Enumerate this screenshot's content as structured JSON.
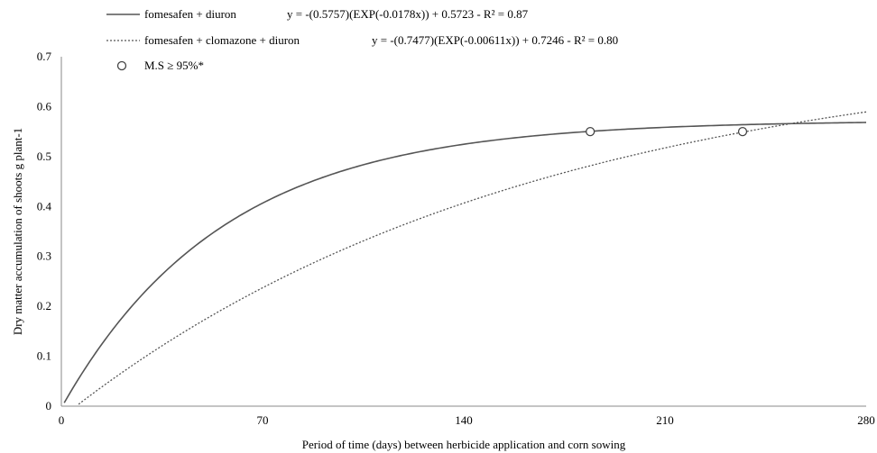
{
  "chart_data": {
    "type": "line",
    "xlabel": "Period of time (days) between herbicide application and corn sowing",
    "ylabel": "Dry matter accumulation of shoots g plant-1",
    "xlim": [
      0,
      280
    ],
    "ylim": [
      0,
      0.7
    ],
    "xticks": [
      "0",
      "70",
      "140",
      "210",
      "280"
    ],
    "yticks": [
      "0",
      "0.1",
      "0.2",
      "0.3",
      "0.4",
      "0.5",
      "0.6",
      "0.7"
    ],
    "grid": false,
    "legend_position": "top-left",
    "series": [
      {
        "name": "fomesafen + diuron",
        "equation": "y = -(0.5757)(EXP(-0.0178x)) + 0.5723 - R² = 0.87",
        "model": {
          "a": 0.5757,
          "k": 0.0178,
          "c": 0.5723
        },
        "color": "#555555",
        "style": "solid",
        "marker_point": {
          "x": 184,
          "y": 0.55
        }
      },
      {
        "name": "fomesafen + clomazone + diuron",
        "equation": "y = -(0.7477)(EXP(-0.00611x)) + 0.7246 - R² = 0.80",
        "model": {
          "a": 0.7477,
          "k": 0.00611,
          "c": 0.7246
        },
        "color": "#555555",
        "style": "dotted",
        "marker_point": {
          "x": 237,
          "y": 0.55
        }
      }
    ],
    "marker_legend": "M.S ≥ 95%*"
  }
}
